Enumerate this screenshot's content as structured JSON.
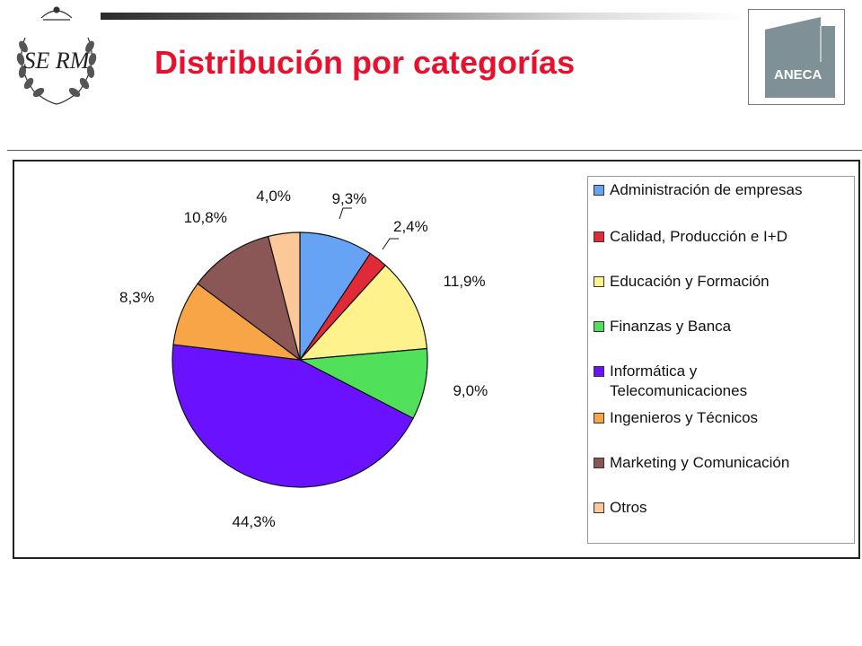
{
  "page": {
    "title": "Distribución por categorías"
  },
  "logos": {
    "crest_monogram": "SE RM",
    "brand_logo_text": "ANECA"
  },
  "colors": {
    "title": "#e8112d",
    "logo_gray": "#7f9097"
  },
  "chart_data": {
    "type": "pie",
    "title": "",
    "categories": [
      "Administración de empresas",
      "Calidad, Producción e I+D",
      "Educación y Formación",
      "Finanzas y Banca",
      "Informática y Telecomunicaciones",
      "Ingenieros y Técnicos",
      "Marketing y Comunicación",
      "Otros"
    ],
    "legend_labels": [
      [
        "Administración de empresas"
      ],
      [
        "Calidad, Producción e I+D"
      ],
      [
        "Educación y Formación"
      ],
      [
        "Finanzas y Banca"
      ],
      [
        "Informática y",
        "Telecomunicaciones"
      ],
      [
        "Ingenieros y Técnicos"
      ],
      [
        "Marketing y Comunicación"
      ],
      [
        "Otros"
      ]
    ],
    "values": [
      9.3,
      2.4,
      11.9,
      9.0,
      44.3,
      8.3,
      10.8,
      4.0
    ],
    "data_labels": [
      "9,3%",
      "2,4%",
      "11,9%",
      "9,0%",
      "44,3%",
      "8,3%",
      "10,8%",
      "4,0%"
    ],
    "colors": [
      "#66a3f5",
      "#e02a38",
      "#fdf28c",
      "#50e05a",
      "#6a12ff",
      "#f8a548",
      "#8a5656",
      "#fcc89a"
    ],
    "legend_position": "right",
    "start_angle": "12 o'clock",
    "direction": "clockwise"
  }
}
